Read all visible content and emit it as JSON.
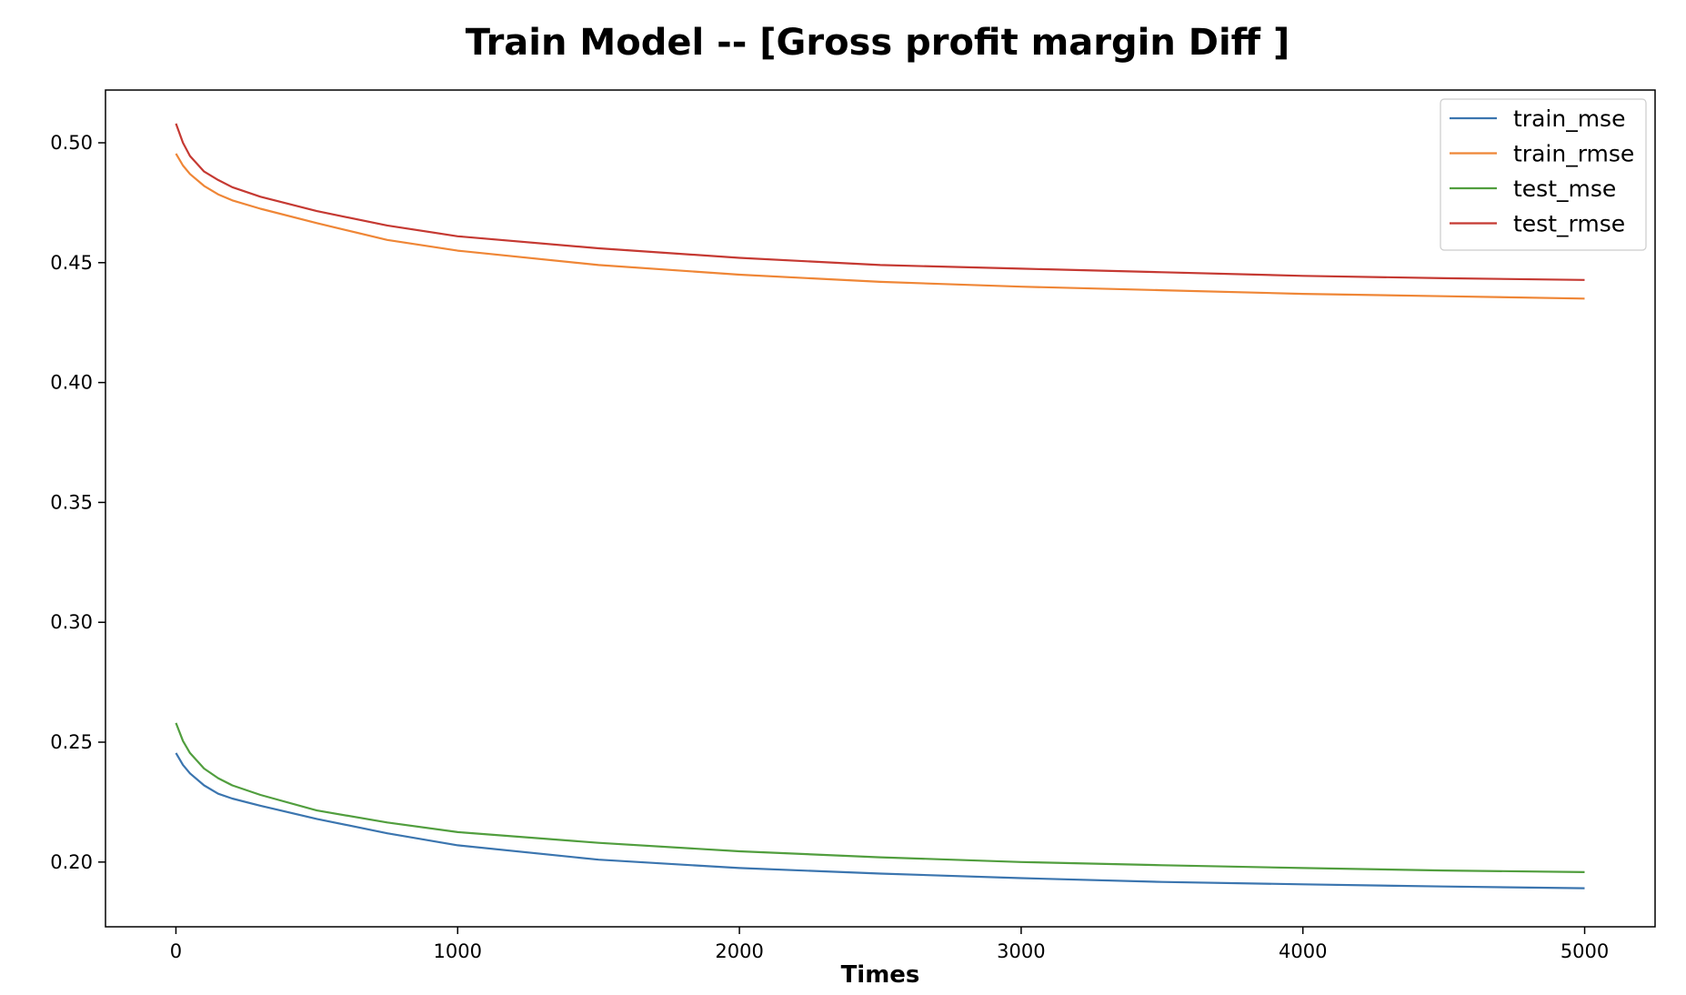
{
  "chart_data": {
    "type": "line",
    "title": "Train Model -- [Gross profit margin Diff ]",
    "xlabel": "Times",
    "ylabel": "",
    "xlim": [
      -250,
      5250
    ],
    "ylim": [
      0.173,
      0.522
    ],
    "xticks": [
      0,
      1000,
      2000,
      3000,
      4000,
      5000
    ],
    "yticks": [
      0.2,
      0.25,
      0.3,
      0.35,
      0.4,
      0.45,
      0.5
    ],
    "ytick_labels": [
      "0.20",
      "0.25",
      "0.30",
      "0.35",
      "0.40",
      "0.45",
      "0.50"
    ],
    "xtick_labels": [
      "0",
      "1000",
      "2000",
      "3000",
      "4000",
      "5000"
    ],
    "grid": false,
    "legend_position": "top-right",
    "x": [
      0,
      25,
      50,
      100,
      150,
      200,
      300,
      500,
      750,
      1000,
      1500,
      2000,
      2500,
      3000,
      3500,
      4000,
      4500,
      5000
    ],
    "series": [
      {
        "name": "train_mse",
        "color": "#3b75af",
        "values": [
          0.2455,
          0.2405,
          0.237,
          0.232,
          0.2285,
          0.2265,
          0.2235,
          0.218,
          0.212,
          0.207,
          0.201,
          0.1975,
          0.1952,
          0.1933,
          0.1917,
          0.1907,
          0.1898,
          0.1891
        ]
      },
      {
        "name": "train_rmse",
        "color": "#ef8636",
        "values": [
          0.4955,
          0.4905,
          0.487,
          0.482,
          0.4785,
          0.476,
          0.4725,
          0.4665,
          0.4595,
          0.455,
          0.449,
          0.445,
          0.442,
          0.44,
          0.4385,
          0.437,
          0.436,
          0.435
        ]
      },
      {
        "name": "test_mse",
        "color": "#519e3e",
        "values": [
          0.258,
          0.2505,
          0.2455,
          0.239,
          0.235,
          0.232,
          0.228,
          0.2215,
          0.2165,
          0.2125,
          0.208,
          0.2045,
          0.202,
          0.2,
          0.1987,
          0.1975,
          0.1965,
          0.1958
        ]
      },
      {
        "name": "test_rmse",
        "color": "#c53932",
        "values": [
          0.508,
          0.5,
          0.4945,
          0.488,
          0.4845,
          0.4815,
          0.4775,
          0.4715,
          0.4655,
          0.461,
          0.456,
          0.452,
          0.449,
          0.4475,
          0.446,
          0.4445,
          0.4435,
          0.4428
        ]
      }
    ]
  }
}
